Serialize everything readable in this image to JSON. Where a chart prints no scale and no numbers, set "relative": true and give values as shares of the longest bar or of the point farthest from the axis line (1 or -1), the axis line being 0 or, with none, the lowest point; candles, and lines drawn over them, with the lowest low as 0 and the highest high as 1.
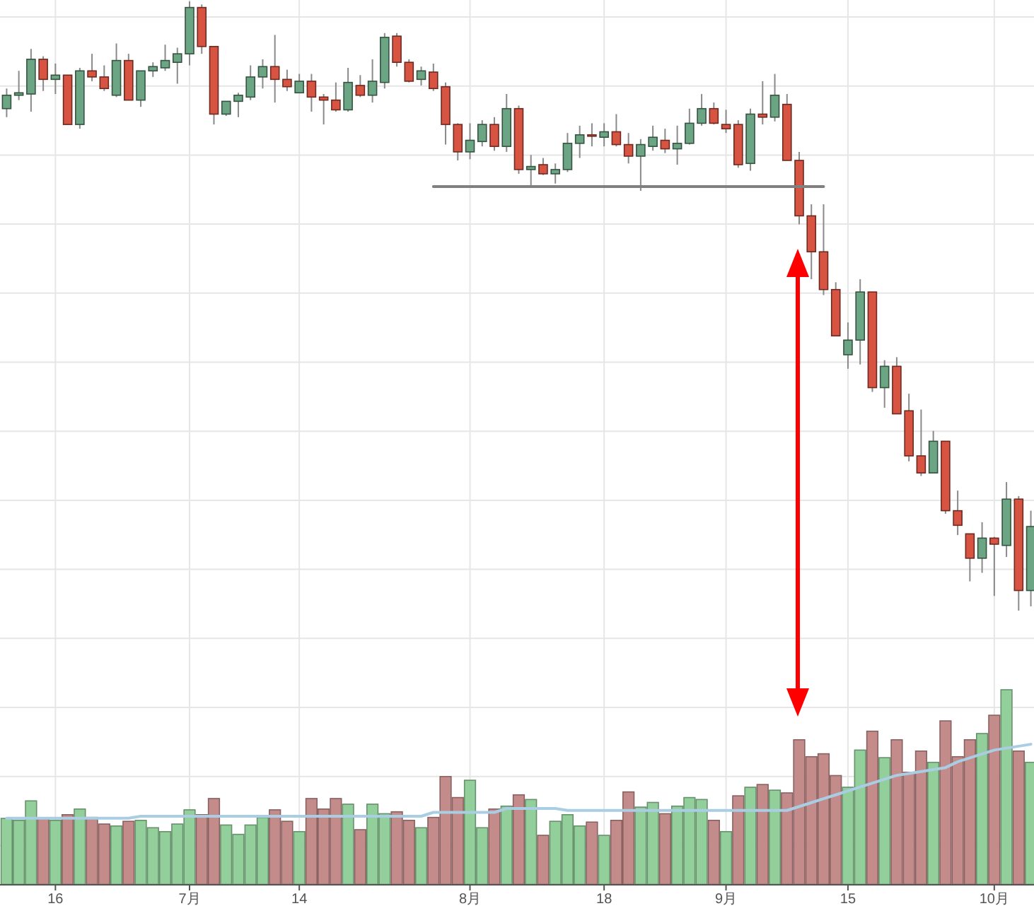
{
  "chart_data": [
    {
      "type": "candlestick",
      "relative": true,
      "tick_labels": false,
      "grid": true,
      "categories": [
        null,
        null,
        null,
        null,
        null,
        null,
        null,
        null,
        null,
        null,
        null,
        null,
        null,
        null,
        null,
        null,
        null,
        null,
        null,
        null,
        null,
        null,
        null,
        null,
        null,
        null,
        null,
        null,
        null,
        null,
        null,
        null,
        null,
        null,
        null,
        null,
        null,
        null,
        null,
        null,
        null,
        null,
        null,
        null,
        null,
        null,
        null,
        null,
        null,
        null,
        null,
        null,
        null,
        null,
        null,
        null,
        null,
        null,
        null,
        null,
        null,
        null,
        null,
        null,
        null,
        null,
        null,
        null,
        null,
        null,
        null,
        null,
        null,
        null,
        null,
        null,
        null,
        null,
        null,
        null,
        null,
        null,
        null,
        null,
        null
      ],
      "ohlc": [
        [
          0.824,
          0.857,
          0.81,
          0.846
        ],
        [
          0.846,
          0.886,
          0.838,
          0.85
        ],
        [
          0.848,
          0.922,
          0.819,
          0.905
        ],
        [
          0.905,
          0.91,
          0.853,
          0.872
        ],
        [
          0.872,
          0.898,
          0.848,
          0.879
        ],
        [
          0.879,
          0.879,
          0.798,
          0.798
        ],
        [
          0.798,
          0.891,
          0.791,
          0.886
        ],
        [
          0.886,
          0.914,
          0.869,
          0.876
        ],
        [
          0.876,
          0.895,
          0.853,
          0.857
        ],
        [
          0.846,
          0.931,
          0.843,
          0.903
        ],
        [
          0.903,
          0.914,
          0.838,
          0.838
        ],
        [
          0.838,
          0.886,
          0.827,
          0.886
        ],
        [
          0.886,
          0.9,
          0.876,
          0.893
        ],
        [
          0.891,
          0.929,
          0.886,
          0.903
        ],
        [
          0.9,
          0.924,
          0.865,
          0.914
        ],
        [
          0.914,
          1.0,
          0.895,
          0.99
        ],
        [
          0.99,
          0.995,
          0.914,
          0.926
        ],
        [
          0.926,
          0.926,
          0.798,
          0.815
        ],
        [
          0.815,
          0.836,
          0.812,
          0.836
        ],
        [
          0.836,
          0.85,
          0.81,
          0.846
        ],
        [
          0.843,
          0.895,
          0.838,
          0.876
        ],
        [
          0.876,
          0.905,
          0.857,
          0.893
        ],
        [
          0.893,
          0.945,
          0.834,
          0.872
        ],
        [
          0.872,
          0.888,
          0.853,
          0.86
        ],
        [
          0.85,
          0.881,
          0.85,
          0.869
        ],
        [
          0.869,
          0.881,
          0.819,
          0.843
        ],
        [
          0.843,
          0.848,
          0.798,
          0.838
        ],
        [
          0.838,
          0.867,
          0.819,
          0.822
        ],
        [
          0.822,
          0.891,
          0.819,
          0.867
        ],
        [
          0.862,
          0.879,
          0.843,
          0.846
        ],
        [
          0.846,
          0.905,
          0.834,
          0.869
        ],
        [
          0.867,
          0.948,
          0.857,
          0.941
        ],
        [
          0.943,
          0.948,
          0.893,
          0.9
        ],
        [
          0.9,
          0.905,
          0.867,
          0.869
        ],
        [
          0.872,
          0.893,
          0.862,
          0.886
        ],
        [
          0.884,
          0.898,
          0.853,
          0.857
        ],
        [
          0.86,
          0.867,
          0.765,
          0.798
        ],
        [
          0.798,
          0.8,
          0.739,
          0.753
        ],
        [
          0.753,
          0.8,
          0.741,
          0.772
        ],
        [
          0.77,
          0.805,
          0.762,
          0.798
        ],
        [
          0.798,
          0.81,
          0.755,
          0.762
        ],
        [
          0.762,
          0.848,
          0.753,
          0.824
        ],
        [
          0.824,
          0.829,
          0.717,
          0.724
        ],
        [
          0.724,
          0.748,
          0.694,
          0.729
        ],
        [
          0.732,
          0.743,
          0.715,
          0.717
        ],
        [
          0.717,
          0.734,
          0.701,
          0.724
        ],
        [
          0.724,
          0.784,
          0.72,
          0.767
        ],
        [
          0.767,
          0.796,
          0.743,
          0.781
        ],
        [
          0.781,
          0.8,
          0.762,
          0.779
        ],
        [
          0.777,
          0.8,
          0.762,
          0.786
        ],
        [
          0.786,
          0.815,
          0.762,
          0.765
        ],
        [
          0.765,
          0.784,
          0.734,
          0.746
        ],
        [
          0.746,
          0.774,
          0.689,
          0.765
        ],
        [
          0.762,
          0.796,
          0.755,
          0.777
        ],
        [
          0.772,
          0.791,
          0.751,
          0.758
        ],
        [
          0.758,
          0.796,
          0.732,
          0.767
        ],
        [
          0.767,
          0.824,
          0.765,
          0.8
        ],
        [
          0.8,
          0.848,
          0.796,
          0.824
        ],
        [
          0.824,
          0.834,
          0.798,
          0.8
        ],
        [
          0.798,
          0.822,
          0.784,
          0.791
        ],
        [
          0.798,
          0.805,
          0.727,
          0.732
        ],
        [
          0.734,
          0.824,
          0.722,
          0.815
        ],
        [
          0.815,
          0.869,
          0.798,
          0.81
        ],
        [
          0.81,
          0.881,
          0.803,
          0.846
        ],
        [
          0.831,
          0.848,
          0.739,
          0.739
        ],
        [
          0.739,
          0.753,
          0.634,
          0.648
        ],
        [
          0.648,
          0.667,
          0.544,
          0.589
        ],
        [
          0.589,
          0.667,
          0.518,
          0.527
        ],
        [
          0.527,
          0.539,
          0.451,
          0.451
        ],
        [
          0.42,
          0.473,
          0.397,
          0.444
        ],
        [
          0.444,
          0.544,
          0.404,
          0.523
        ],
        [
          0.523,
          0.523,
          0.359,
          0.366
        ],
        [
          0.366,
          0.411,
          0.333,
          0.401
        ],
        [
          0.401,
          0.416,
          0.323,
          0.323
        ],
        [
          0.328,
          0.356,
          0.245,
          0.254
        ],
        [
          0.254,
          0.33,
          0.221,
          0.226
        ],
        [
          0.226,
          0.295,
          0.226,
          0.278
        ],
        [
          0.278,
          0.278,
          0.159,
          0.164
        ],
        [
          0.164,
          0.197,
          0.124,
          0.14
        ],
        [
          0.126,
          0.126,
          0.048,
          0.086
        ],
        [
          0.086,
          0.145,
          0.062,
          0.119
        ],
        [
          0.119,
          0.121,
          0.024,
          0.109
        ],
        [
          0.107,
          0.211,
          0.088,
          0.183
        ],
        [
          0.183,
          0.188,
          0.0,
          0.033
        ],
        [
          0.033,
          0.164,
          0.007,
          0.138
        ]
      ],
      "colors": [
        "#6ba583",
        "#6ba583",
        "#6ba583",
        "#d75442",
        "#6ba583",
        "#d75442",
        "#6ba583",
        "#d75442",
        "#d75442",
        "#6ba583",
        "#d75442",
        "#6ba583",
        "#6ba583",
        "#6ba583",
        "#6ba583",
        "#6ba583",
        "#d75442",
        "#d75442",
        "#6ba583",
        "#6ba583",
        "#6ba583",
        "#6ba583",
        "#d75442",
        "#d75442",
        "#6ba583",
        "#d75442",
        "#d75442",
        "#d75442",
        "#6ba583",
        "#d75442",
        "#6ba583",
        "#6ba583",
        "#d75442",
        "#d75442",
        "#6ba583",
        "#d75442",
        "#d75442",
        "#d75442",
        "#6ba583",
        "#6ba583",
        "#d75442",
        "#6ba583",
        "#d75442",
        "#6ba583",
        "#d75442",
        "#6ba583",
        "#6ba583",
        "#6ba583",
        "#d75442",
        "#6ba583",
        "#d75442",
        "#d75442",
        "#6ba583",
        "#6ba583",
        "#d75442",
        "#6ba583",
        "#6ba583",
        "#6ba583",
        "#d75442",
        "#d75442",
        "#d75442",
        "#6ba583",
        "#d75442",
        "#6ba583",
        "#d75442",
        "#d75442",
        "#d75442",
        "#d75442",
        "#d75442",
        "#6ba583",
        "#6ba583",
        "#d75442",
        "#6ba583",
        "#d75442",
        "#d75442",
        "#d75442",
        "#6ba583",
        "#d75442",
        "#d75442",
        "#d75442",
        "#6ba583",
        "#d75442",
        "#6ba583",
        "#d75442",
        "#6ba583"
      ],
      "series": [
        {
          "type": "line",
          "color": "#808080",
          "values": [
            null,
            null,
            null,
            null,
            null,
            null,
            null,
            null,
            null,
            null,
            null,
            null,
            null,
            null,
            null,
            null,
            null,
            null,
            null,
            null,
            null,
            null,
            null,
            null,
            null,
            null,
            null,
            null,
            null,
            null,
            null,
            null,
            null,
            null,
            null,
            0.696,
            0.696,
            0.696,
            0.696,
            0.696,
            0.696,
            0.696,
            0.696,
            0.696,
            0.696,
            0.696,
            0.696,
            0.696,
            0.696,
            0.696,
            0.696,
            0.696,
            0.696,
            0.696,
            0.696,
            0.696,
            0.696,
            0.696,
            0.696,
            0.696,
            0.696,
            0.696,
            0.696,
            0.696,
            0.696,
            0.696,
            0.696,
            0.696,
            null,
            null,
            null,
            null,
            null,
            null,
            null,
            null,
            null,
            null,
            null,
            null,
            null,
            null,
            null,
            null,
            null
          ]
        }
      ]
    },
    {
      "type": "bar",
      "relative": true,
      "tick_labels": "x",
      "grid": true,
      "categories": [
        null,
        null,
        null,
        null,
        "16",
        null,
        null,
        null,
        null,
        null,
        null,
        null,
        null,
        null,
        null,
        "7月",
        null,
        null,
        null,
        null,
        null,
        null,
        null,
        null,
        "14",
        null,
        null,
        null,
        null,
        null,
        null,
        null,
        null,
        null,
        null,
        null,
        null,
        null,
        "8月",
        null,
        null,
        null,
        null,
        null,
        null,
        null,
        null,
        null,
        null,
        "18",
        null,
        null,
        null,
        null,
        null,
        null,
        null,
        null,
        null,
        "9月",
        null,
        null,
        null,
        null,
        null,
        null,
        null,
        null,
        null,
        "15",
        null,
        null,
        null,
        null,
        null,
        null,
        null,
        null,
        null,
        null,
        null,
        "10月",
        null,
        null,
        null
      ],
      "series": [
        {
          "type": "bar",
          "values": [
            0.339,
            0.329,
            0.429,
            0.339,
            0.329,
            0.358,
            0.387,
            0.344,
            0.31,
            0.3,
            0.324,
            0.329,
            0.291,
            0.271,
            0.31,
            0.383,
            0.358,
            0.441,
            0.305,
            0.257,
            0.305,
            0.344,
            0.383,
            0.324,
            0.271,
            0.441,
            0.387,
            0.441,
            0.412,
            0.281,
            0.412,
            0.363,
            0.373,
            0.329,
            0.291,
            0.344,
            0.554,
            0.446,
            0.535,
            0.291,
            0.387,
            0.402,
            0.46,
            0.436,
            0.252,
            0.324,
            0.358,
            0.3,
            0.32,
            0.252,
            0.329,
            0.475,
            0.397,
            0.421,
            0.363,
            0.402,
            0.446,
            0.436,
            0.329,
            0.271,
            0.455,
            0.499,
            0.513,
            0.484,
            0.47,
            0.743,
            0.656,
            0.671,
            0.559,
            0.499,
            0.69,
            0.787,
            0.651,
            0.743,
            0.576,
            0.685,
            0.627,
            0.84,
            0.656,
            0.743,
            0.775,
            0.869,
            1.0,
            0.685,
            0.627
          ],
          "colors": [
            "#93cf9b",
            "#93cf9b",
            "#93cf9b",
            "#c48b8b",
            "#93cf9b",
            "#c48b8b",
            "#93cf9b",
            "#c48b8b",
            "#c48b8b",
            "#93cf9b",
            "#c48b8b",
            "#93cf9b",
            "#93cf9b",
            "#93cf9b",
            "#93cf9b",
            "#93cf9b",
            "#c48b8b",
            "#c48b8b",
            "#93cf9b",
            "#93cf9b",
            "#93cf9b",
            "#93cf9b",
            "#c48b8b",
            "#c48b8b",
            "#93cf9b",
            "#c48b8b",
            "#c48b8b",
            "#c48b8b",
            "#93cf9b",
            "#c48b8b",
            "#93cf9b",
            "#93cf9b",
            "#c48b8b",
            "#c48b8b",
            "#93cf9b",
            "#c48b8b",
            "#c48b8b",
            "#c48b8b",
            "#93cf9b",
            "#93cf9b",
            "#c48b8b",
            "#93cf9b",
            "#c48b8b",
            "#93cf9b",
            "#c48b8b",
            "#93cf9b",
            "#93cf9b",
            "#93cf9b",
            "#c48b8b",
            "#93cf9b",
            "#c48b8b",
            "#c48b8b",
            "#93cf9b",
            "#93cf9b",
            "#c48b8b",
            "#93cf9b",
            "#93cf9b",
            "#93cf9b",
            "#c48b8b",
            "#93cf9b",
            "#c48b8b",
            "#93cf9b",
            "#c48b8b",
            "#93cf9b",
            "#c48b8b",
            "#c48b8b",
            "#c48b8b",
            "#c48b8b",
            "#c48b8b",
            "#93cf9b",
            "#93cf9b",
            "#c48b8b",
            "#93cf9b",
            "#c48b8b",
            "#c48b8b",
            "#c48b8b",
            "#93cf9b",
            "#c48b8b",
            "#c48b8b",
            "#c48b8b",
            "#93cf9b",
            "#c48b8b",
            "#93cf9b",
            "#c48b8b",
            "#93cf9b"
          ]
        },
        {
          "type": "line",
          "color": "#a9cde3",
          "values": [
            0.34,
            0.34,
            0.34,
            0.34,
            0.34,
            0.34,
            0.34,
            0.34,
            0.34,
            0.34,
            0.34,
            0.35,
            0.35,
            0.35,
            0.35,
            0.35,
            0.35,
            0.35,
            0.35,
            0.35,
            0.35,
            0.35,
            0.35,
            0.35,
            0.35,
            0.35,
            0.35,
            0.35,
            0.35,
            0.35,
            0.35,
            0.35,
            0.35,
            0.35,
            0.35,
            0.37,
            0.37,
            0.37,
            0.37,
            0.37,
            0.37,
            0.39,
            0.39,
            0.39,
            0.39,
            0.39,
            0.38,
            0.38,
            0.38,
            0.38,
            0.38,
            0.38,
            0.38,
            0.38,
            0.38,
            0.38,
            0.38,
            0.38,
            0.38,
            0.38,
            0.38,
            0.38,
            0.38,
            0.38,
            0.38,
            0.4,
            0.42,
            0.44,
            0.46,
            0.48,
            0.5,
            0.52,
            0.54,
            0.56,
            0.57,
            0.58,
            0.59,
            0.6,
            0.63,
            0.65,
            0.67,
            0.69,
            0.7,
            0.71,
            0.72
          ]
        }
      ]
    }
  ]
}
